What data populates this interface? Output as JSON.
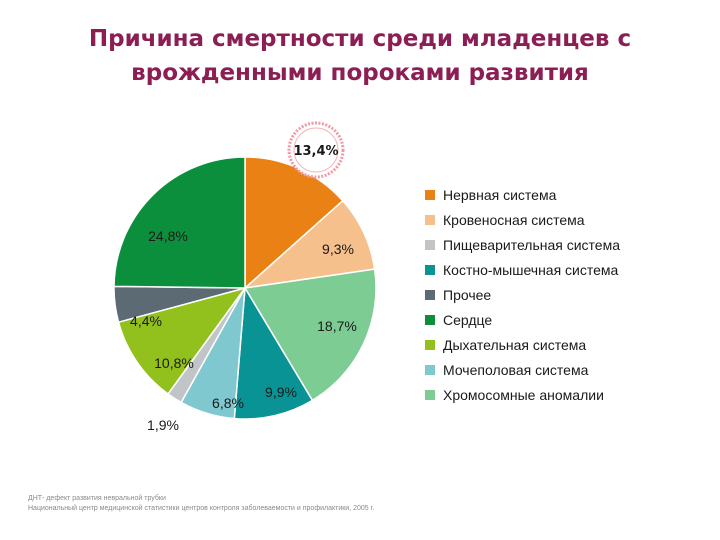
{
  "title_line1": "Причина смертности среди младенцев с",
  "title_line2": "врожденными пороками развития",
  "highlight_label": "13,4%",
  "chart_data": {
    "type": "pie",
    "title": "Причина смертности среди младенцев с врожденными пороками развития",
    "slices": [
      {
        "name": "Нервная система",
        "value": 13.4,
        "label": "13,4%",
        "color": "#ea8114"
      },
      {
        "name": "Кровеносная система",
        "value": 9.3,
        "label": "9,3%",
        "color": "#f5c08c"
      },
      {
        "name": "Хромосомные аномалии",
        "value": 18.7,
        "label": "18,7%",
        "color": "#7ccc94"
      },
      {
        "name": "Костно-мышечная система",
        "value": 9.9,
        "label": "9,9%",
        "color": "#0a9395"
      },
      {
        "name": "Мочеполовая система",
        "value": 6.8,
        "label": "6,8%",
        "color": "#7fc8d0"
      },
      {
        "name": "Пищеварительная система",
        "value": 1.9,
        "label": "1,9%",
        "color": "#c2c5c8"
      },
      {
        "name": "Дыхательная система",
        "value": 10.8,
        "label": "10,8%",
        "color": "#92c01c"
      },
      {
        "name": "Прочее",
        "value": 4.4,
        "label": "4,4%",
        "color": "#5c6b73"
      },
      {
        "name": "Сердце",
        "value": 24.8,
        "label": "24,8%",
        "color": "#0c8f3c"
      }
    ],
    "legend": [
      {
        "label": "Нервная система",
        "color": "#ea8114"
      },
      {
        "label": "Кровеносная система",
        "color": "#f5c08c"
      },
      {
        "label": "Пищеварительная система",
        "color": "#c2c5c8"
      },
      {
        "label": "Костно-мышечная система",
        "color": "#0a9395"
      },
      {
        "label": "Прочее",
        "color": "#5c6b73"
      },
      {
        "label": "Сердце",
        "color": "#0c8f3c"
      },
      {
        "label": "Дыхательная система",
        "color": "#92c01c"
      },
      {
        "label": "Мочеполовая система",
        "color": "#7fc8d0"
      },
      {
        "label": "Хромосомные аномалии",
        "color": "#7ccc94"
      }
    ],
    "legend_position": "right"
  },
  "footnote_line1": "ДНТ- дефект развития невральной трубки",
  "footnote_line2": "Национальный центр медицинской статистики центров контроля заболеваемости и профилактики, 2005 г."
}
